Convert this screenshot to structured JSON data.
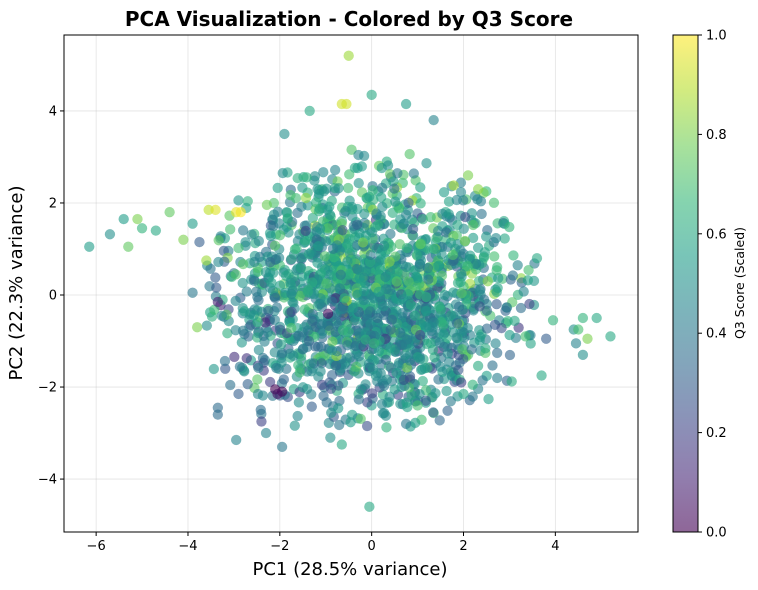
{
  "chart_data": {
    "type": "scatter",
    "title": "PCA Visualization - Colored by Q3 Score",
    "xlabel": "PC1 (28.5% variance)",
    "ylabel": "PC2 (22.3% variance)",
    "xlim": [
      -6.7,
      5.8
    ],
    "ylim": [
      -5.15,
      5.65
    ],
    "xticks": [
      -6,
      -4,
      -2,
      0,
      2,
      4
    ],
    "yticks": [
      -4,
      -2,
      0,
      2,
      4
    ],
    "xtick_labels": [
      "−6",
      "−4",
      "−2",
      "0",
      "2",
      "4"
    ],
    "ytick_labels": [
      "−4",
      "−2",
      "0",
      "2",
      "4"
    ],
    "grid": true,
    "colormap": "viridis",
    "marker_alpha": 0.6,
    "colorbar": {
      "label": "Q3 Score (Scaled)",
      "range": [
        0.0,
        1.0
      ],
      "ticks": [
        0.0,
        0.2,
        0.4,
        0.6,
        0.8,
        1.0
      ],
      "tick_labels": [
        "0.0",
        "0.2",
        "0.4",
        "0.6",
        "0.8",
        "1.0"
      ]
    },
    "outlier_points": [
      {
        "x": -6.15,
        "y": 1.05,
        "c": 0.55
      },
      {
        "x": -5.7,
        "y": 1.32,
        "c": 0.5
      },
      {
        "x": -5.4,
        "y": 1.65,
        "c": 0.55
      },
      {
        "x": -5.1,
        "y": 1.65,
        "c": 0.8
      },
      {
        "x": -5.0,
        "y": 1.45,
        "c": 0.65
      },
      {
        "x": -5.3,
        "y": 1.05,
        "c": 0.75
      },
      {
        "x": -4.7,
        "y": 1.4,
        "c": 0.6
      },
      {
        "x": -4.4,
        "y": 1.8,
        "c": 0.75
      },
      {
        "x": -4.1,
        "y": 1.2,
        "c": 0.8
      },
      {
        "x": -3.9,
        "y": 1.55,
        "c": 0.55
      },
      {
        "x": -3.75,
        "y": 1.15,
        "c": 0.3
      },
      {
        "x": -3.55,
        "y": 1.85,
        "c": 0.9
      },
      {
        "x": -3.4,
        "y": 1.85,
        "c": 0.95
      },
      {
        "x": -3.6,
        "y": 0.75,
        "c": 0.85
      },
      {
        "x": -3.8,
        "y": -0.7,
        "c": 0.8
      },
      {
        "x": -3.35,
        "y": -0.15,
        "c": 0.1
      },
      {
        "x": -3.9,
        "y": 0.05,
        "c": 0.4
      },
      {
        "x": -2.85,
        "y": 1.8,
        "c": 1.0
      },
      {
        "x": -2.95,
        "y": 1.8,
        "c": 0.97
      },
      {
        "x": -0.5,
        "y": 5.2,
        "c": 0.85
      },
      {
        "x": -0.65,
        "y": 4.15,
        "c": 0.93
      },
      {
        "x": -0.55,
        "y": 4.15,
        "c": 0.93
      },
      {
        "x": 0.0,
        "y": 4.35,
        "c": 0.6
      },
      {
        "x": -0.05,
        "y": -4.6,
        "c": 0.6
      },
      {
        "x": -0.65,
        "y": -3.25,
        "c": 0.6
      },
      {
        "x": -2.95,
        "y": -3.15,
        "c": 0.45
      },
      {
        "x": -3.35,
        "y": -2.6,
        "c": 0.35
      },
      {
        "x": -3.35,
        "y": -2.45,
        "c": 0.35
      },
      {
        "x": -1.95,
        "y": -3.3,
        "c": 0.4
      },
      {
        "x": -2.3,
        "y": -3.0,
        "c": 0.45
      },
      {
        "x": -0.9,
        "y": -3.1,
        "c": 0.5
      },
      {
        "x": 0.75,
        "y": -2.8,
        "c": 0.4
      },
      {
        "x": 4.4,
        "y": -0.75,
        "c": 0.5
      },
      {
        "x": 4.6,
        "y": -0.5,
        "c": 0.65
      },
      {
        "x": 4.9,
        "y": -0.5,
        "c": 0.6
      },
      {
        "x": 5.2,
        "y": -0.9,
        "c": 0.6
      },
      {
        "x": 4.7,
        "y": -0.95,
        "c": 0.8
      },
      {
        "x": 4.5,
        "y": -0.75,
        "c": 0.7
      },
      {
        "x": 4.45,
        "y": -1.05,
        "c": 0.45
      },
      {
        "x": 4.6,
        "y": -1.3,
        "c": 0.5
      },
      {
        "x": 3.7,
        "y": -1.75,
        "c": 0.6
      },
      {
        "x": 3.95,
        "y": -0.55,
        "c": 0.65
      },
      {
        "x": 3.6,
        "y": 0.8,
        "c": 0.6
      },
      {
        "x": 3.35,
        "y": -0.9,
        "c": 0.7
      },
      {
        "x": 3.8,
        "y": -0.95,
        "c": 0.3
      },
      {
        "x": 2.1,
        "y": 2.6,
        "c": 0.8
      },
      {
        "x": 1.35,
        "y": 3.8,
        "c": 0.45
      },
      {
        "x": 0.75,
        "y": 4.15,
        "c": 0.55
      },
      {
        "x": -1.9,
        "y": 3.5,
        "c": 0.5
      },
      {
        "x": -1.35,
        "y": 4.0,
        "c": 0.6
      },
      {
        "x": -2.1,
        "y": -2.05,
        "c": 0.0
      },
      {
        "x": -1.95,
        "y": -2.1,
        "c": 0.0
      },
      {
        "x": -2.05,
        "y": -2.15,
        "c": 0.05
      },
      {
        "x": -2.9,
        "y": -2.15,
        "c": 0.3
      },
      {
        "x": -2.4,
        "y": -2.75,
        "c": 0.2
      },
      {
        "x": 1.95,
        "y": -1.9,
        "c": 0.2
      },
      {
        "x": 2.0,
        "y": -2.15,
        "c": 0.6
      },
      {
        "x": 1.0,
        "y": -2.4,
        "c": 0.7
      },
      {
        "x": 2.2,
        "y": -1.95,
        "c": 0.65
      }
    ],
    "bulk": {
      "count": 1750,
      "center": [
        -0.1,
        -0.05
      ],
      "spread": [
        1.6,
        1.35
      ],
      "x_range": [
        -3.6,
        3.8
      ],
      "y_range": [
        -2.9,
        3.5
      ],
      "value_mean": 0.5,
      "value_sd": 0.14
    }
  }
}
